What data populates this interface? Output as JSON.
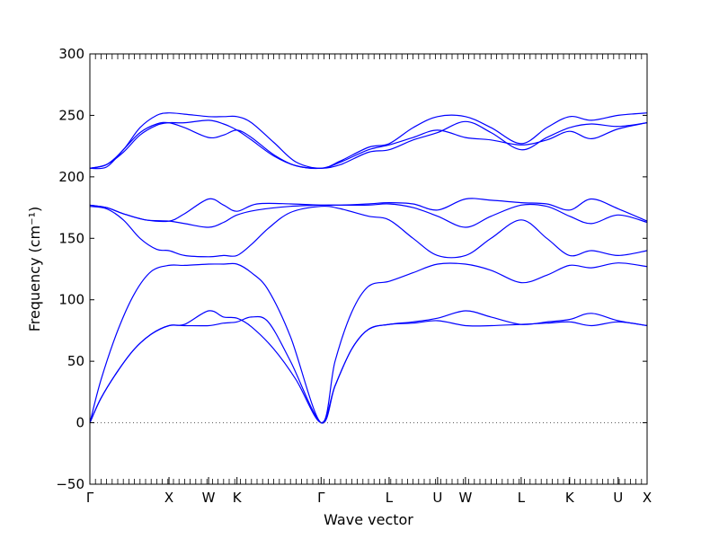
{
  "chart_data": {
    "type": "line",
    "title": "",
    "xlabel": "Wave vector",
    "ylabel": "Frequency (cm⁻¹)",
    "ylim": [
      -50,
      300
    ],
    "xlim": [
      0,
      1
    ],
    "yticks": [
      -50,
      0,
      50,
      100,
      150,
      200,
      250,
      300
    ],
    "grid": false,
    "legend": "none",
    "line_color": "#0000ff",
    "zero_line": {
      "y": 0,
      "style": "dotted",
      "color": "#555555"
    },
    "high_symmetry_points": [
      {
        "label": "Γ",
        "x": 0.0
      },
      {
        "label": "X",
        "x": 0.142
      },
      {
        "label": "W",
        "x": 0.213
      },
      {
        "label": "K",
        "x": 0.264
      },
      {
        "label": "Γ",
        "x": 0.415
      },
      {
        "label": "L",
        "x": 0.537
      },
      {
        "label": "U",
        "x": 0.624
      },
      {
        "label": "W",
        "x": 0.674
      },
      {
        "label": "L",
        "x": 0.774
      },
      {
        "label": "K",
        "x": 0.861
      },
      {
        "label": "U",
        "x": 0.948
      },
      {
        "label": "X",
        "x": 1.0
      }
    ],
    "series": [
      {
        "values": [
          [
            0,
            0
          ],
          [
            0.02,
            20
          ],
          [
            0.05,
            42
          ],
          [
            0.08,
            60
          ],
          [
            0.11,
            72
          ],
          [
            0.142,
            79
          ],
          [
            0.17,
            80
          ],
          [
            0.213,
            91
          ],
          [
            0.24,
            86
          ],
          [
            0.264,
            85
          ],
          [
            0.29,
            78
          ],
          [
            0.33,
            60
          ],
          [
            0.37,
            35
          ],
          [
            0.415,
            0
          ],
          [
            0.44,
            30
          ],
          [
            0.47,
            60
          ],
          [
            0.5,
            76
          ],
          [
            0.537,
            80
          ],
          [
            0.58,
            82
          ],
          [
            0.624,
            85
          ],
          [
            0.674,
            91
          ],
          [
            0.72,
            86
          ],
          [
            0.774,
            80
          ],
          [
            0.82,
            82
          ],
          [
            0.861,
            84
          ],
          [
            0.9,
            89
          ],
          [
            0.948,
            83
          ],
          [
            1.0,
            79
          ]
        ]
      },
      {
        "values": [
          [
            0,
            0
          ],
          [
            0.02,
            20
          ],
          [
            0.05,
            42
          ],
          [
            0.08,
            60
          ],
          [
            0.11,
            72
          ],
          [
            0.142,
            79
          ],
          [
            0.17,
            79
          ],
          [
            0.213,
            79
          ],
          [
            0.24,
            81
          ],
          [
            0.264,
            82
          ],
          [
            0.29,
            86
          ],
          [
            0.32,
            82
          ],
          [
            0.36,
            50
          ],
          [
            0.415,
            0
          ],
          [
            0.44,
            30
          ],
          [
            0.47,
            60
          ],
          [
            0.5,
            76
          ],
          [
            0.537,
            80
          ],
          [
            0.58,
            81
          ],
          [
            0.624,
            83
          ],
          [
            0.674,
            79
          ],
          [
            0.72,
            79
          ],
          [
            0.774,
            80
          ],
          [
            0.82,
            81
          ],
          [
            0.861,
            82
          ],
          [
            0.9,
            79
          ],
          [
            0.948,
            82
          ],
          [
            1.0,
            79
          ]
        ]
      },
      {
        "values": [
          [
            0,
            0
          ],
          [
            0.02,
            35
          ],
          [
            0.05,
            75
          ],
          [
            0.08,
            105
          ],
          [
            0.11,
            123
          ],
          [
            0.142,
            128
          ],
          [
            0.17,
            128
          ],
          [
            0.213,
            129
          ],
          [
            0.24,
            129
          ],
          [
            0.264,
            129
          ],
          [
            0.29,
            122
          ],
          [
            0.32,
            108
          ],
          [
            0.36,
            70
          ],
          [
            0.415,
            0
          ],
          [
            0.44,
            50
          ],
          [
            0.47,
            90
          ],
          [
            0.5,
            111
          ],
          [
            0.537,
            115
          ],
          [
            0.58,
            122
          ],
          [
            0.624,
            129
          ],
          [
            0.674,
            129
          ],
          [
            0.72,
            124
          ],
          [
            0.774,
            114
          ],
          [
            0.82,
            120
          ],
          [
            0.861,
            128
          ],
          [
            0.9,
            126
          ],
          [
            0.948,
            130
          ],
          [
            1.0,
            127
          ]
        ]
      },
      {
        "values": [
          [
            0,
            176
          ],
          [
            0.03,
            174
          ],
          [
            0.06,
            165
          ],
          [
            0.09,
            150
          ],
          [
            0.12,
            141
          ],
          [
            0.142,
            140
          ],
          [
            0.17,
            136
          ],
          [
            0.213,
            135
          ],
          [
            0.24,
            136
          ],
          [
            0.264,
            136
          ],
          [
            0.29,
            145
          ],
          [
            0.32,
            158
          ],
          [
            0.36,
            171
          ],
          [
            0.415,
            176
          ],
          [
            0.45,
            174
          ],
          [
            0.5,
            168
          ],
          [
            0.537,
            165
          ],
          [
            0.58,
            150
          ],
          [
            0.624,
            136
          ],
          [
            0.674,
            136
          ],
          [
            0.72,
            150
          ],
          [
            0.774,
            165
          ],
          [
            0.82,
            150
          ],
          [
            0.861,
            136
          ],
          [
            0.9,
            140
          ],
          [
            0.948,
            136
          ],
          [
            1.0,
            140
          ]
        ]
      },
      {
        "values": [
          [
            0,
            177
          ],
          [
            0.03,
            175
          ],
          [
            0.06,
            170
          ],
          [
            0.1,
            165
          ],
          [
            0.142,
            164
          ],
          [
            0.17,
            162
          ],
          [
            0.213,
            159
          ],
          [
            0.24,
            163
          ],
          [
            0.264,
            169
          ],
          [
            0.3,
            173
          ],
          [
            0.36,
            176
          ],
          [
            0.415,
            177
          ],
          [
            0.45,
            177
          ],
          [
            0.5,
            177
          ],
          [
            0.537,
            178
          ],
          [
            0.58,
            175
          ],
          [
            0.624,
            168
          ],
          [
            0.674,
            159
          ],
          [
            0.72,
            168
          ],
          [
            0.774,
            177
          ],
          [
            0.82,
            176
          ],
          [
            0.861,
            168
          ],
          [
            0.9,
            162
          ],
          [
            0.948,
            169
          ],
          [
            1.0,
            163
          ]
        ]
      },
      {
        "values": [
          [
            0,
            177
          ],
          [
            0.03,
            175
          ],
          [
            0.06,
            170
          ],
          [
            0.1,
            165
          ],
          [
            0.142,
            164
          ],
          [
            0.17,
            170
          ],
          [
            0.213,
            182
          ],
          [
            0.24,
            177
          ],
          [
            0.264,
            172
          ],
          [
            0.3,
            178
          ],
          [
            0.36,
            178
          ],
          [
            0.415,
            177
          ],
          [
            0.45,
            177
          ],
          [
            0.5,
            178
          ],
          [
            0.537,
            179
          ],
          [
            0.58,
            178
          ],
          [
            0.624,
            173
          ],
          [
            0.674,
            182
          ],
          [
            0.72,
            181
          ],
          [
            0.774,
            179
          ],
          [
            0.82,
            178
          ],
          [
            0.861,
            173
          ],
          [
            0.9,
            182
          ],
          [
            0.948,
            174
          ],
          [
            1.0,
            164
          ]
        ]
      },
      {
        "values": [
          [
            0,
            207
          ],
          [
            0.03,
            210
          ],
          [
            0.06,
            220
          ],
          [
            0.09,
            234
          ],
          [
            0.12,
            242
          ],
          [
            0.142,
            244
          ],
          [
            0.17,
            244
          ],
          [
            0.213,
            246
          ],
          [
            0.24,
            243
          ],
          [
            0.264,
            238
          ],
          [
            0.29,
            230
          ],
          [
            0.33,
            217
          ],
          [
            0.37,
            209
          ],
          [
            0.415,
            207
          ],
          [
            0.45,
            212
          ],
          [
            0.5,
            222
          ],
          [
            0.537,
            226
          ],
          [
            0.58,
            232
          ],
          [
            0.624,
            238
          ],
          [
            0.674,
            232
          ],
          [
            0.72,
            230
          ],
          [
            0.774,
            226
          ],
          [
            0.82,
            230
          ],
          [
            0.861,
            237
          ],
          [
            0.9,
            231
          ],
          [
            0.948,
            239
          ],
          [
            1.0,
            244
          ]
        ]
      },
      {
        "values": [
          [
            0,
            207
          ],
          [
            0.03,
            208
          ],
          [
            0.06,
            222
          ],
          [
            0.09,
            236
          ],
          [
            0.12,
            243
          ],
          [
            0.142,
            244
          ],
          [
            0.17,
            240
          ],
          [
            0.213,
            232
          ],
          [
            0.24,
            234
          ],
          [
            0.264,
            238
          ],
          [
            0.29,
            232
          ],
          [
            0.33,
            218
          ],
          [
            0.37,
            209
          ],
          [
            0.415,
            207
          ],
          [
            0.45,
            210
          ],
          [
            0.5,
            220
          ],
          [
            0.537,
            222
          ],
          [
            0.58,
            230
          ],
          [
            0.624,
            236
          ],
          [
            0.674,
            245
          ],
          [
            0.72,
            236
          ],
          [
            0.774,
            222
          ],
          [
            0.82,
            232
          ],
          [
            0.861,
            240
          ],
          [
            0.9,
            243
          ],
          [
            0.948,
            241
          ],
          [
            1.0,
            244
          ]
        ]
      },
      {
        "values": [
          [
            0,
            207
          ],
          [
            0.03,
            210
          ],
          [
            0.06,
            222
          ],
          [
            0.09,
            240
          ],
          [
            0.12,
            250
          ],
          [
            0.142,
            252
          ],
          [
            0.17,
            251
          ],
          [
            0.213,
            249
          ],
          [
            0.24,
            249
          ],
          [
            0.264,
            249
          ],
          [
            0.29,
            244
          ],
          [
            0.33,
            228
          ],
          [
            0.37,
            212
          ],
          [
            0.415,
            207
          ],
          [
            0.45,
            213
          ],
          [
            0.5,
            224
          ],
          [
            0.537,
            227
          ],
          [
            0.58,
            240
          ],
          [
            0.624,
            249
          ],
          [
            0.674,
            249
          ],
          [
            0.72,
            240
          ],
          [
            0.774,
            227
          ],
          [
            0.82,
            240
          ],
          [
            0.861,
            249
          ],
          [
            0.9,
            246
          ],
          [
            0.948,
            250
          ],
          [
            1.0,
            252
          ]
        ]
      }
    ]
  }
}
